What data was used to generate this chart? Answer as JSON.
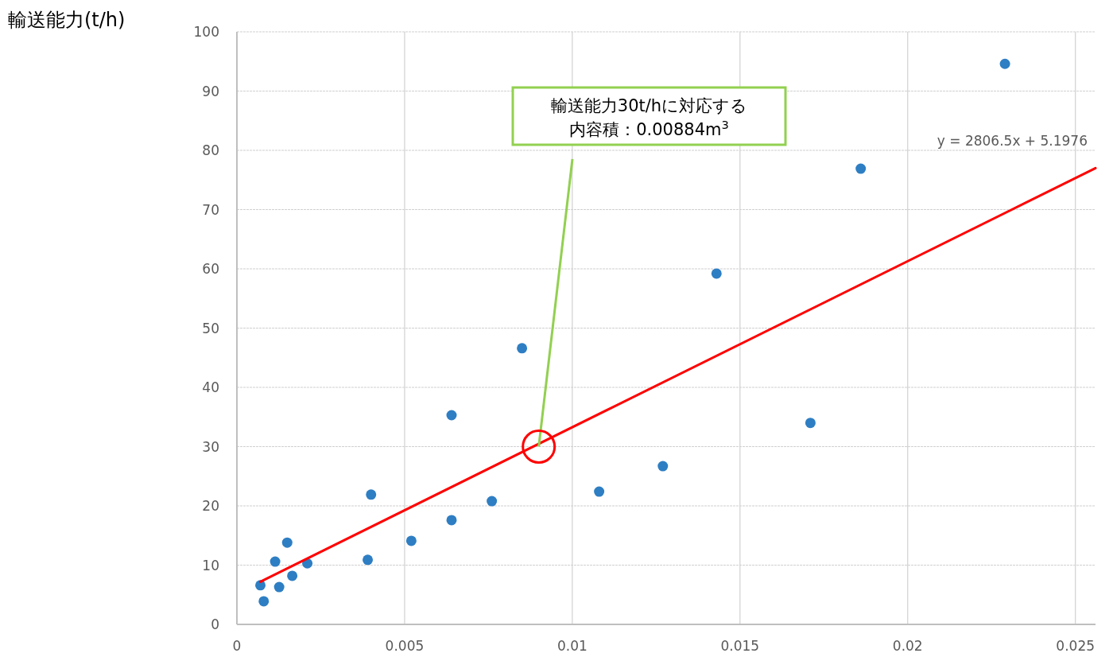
{
  "chart_data": {
    "type": "scatter",
    "ylabel": "輸送能力(t/h)",
    "xlim": [
      0,
      0.0256
    ],
    "xticks": [
      0,
      0.005,
      0.01,
      0.015,
      0.02,
      0.025
    ],
    "ylim": [
      0,
      100
    ],
    "yticks": [
      0,
      10,
      20,
      30,
      40,
      50,
      60,
      70,
      80,
      90,
      100
    ],
    "grid": true,
    "series": [
      {
        "marker": "circle",
        "color": "#2e7ec3",
        "x": [
          0.0007,
          0.0008,
          0.00114,
          0.00126,
          0.0015,
          0.00165,
          0.0021,
          0.0039,
          0.004,
          0.0052,
          0.0064,
          0.0064,
          0.0076,
          0.0085,
          0.0108,
          0.0127,
          0.0143,
          0.0171,
          0.0186,
          0.0229
        ],
        "values": [
          6.6,
          3.9,
          10.6,
          6.3,
          13.8,
          8.2,
          10.3,
          10.9,
          21.9,
          14.1,
          35.3,
          17.6,
          20.8,
          46.6,
          22.4,
          26.7,
          59.2,
          34.0,
          76.9,
          94.6
        ]
      },
      {
        "type": "line",
        "marker": "none",
        "color": "#ff0000",
        "x": [
          0.0007,
          0.0256
        ],
        "values": [
          7.2,
          77.0
        ]
      }
    ],
    "annotations": [
      "y = 2806.5x  + 5.1976",
      {
        "text": "輸送能力30t/hに対応する内容積：0.00884m$^{3}$",
        "x": 0.009,
        "y": 30
      }
    ]
  }
}
